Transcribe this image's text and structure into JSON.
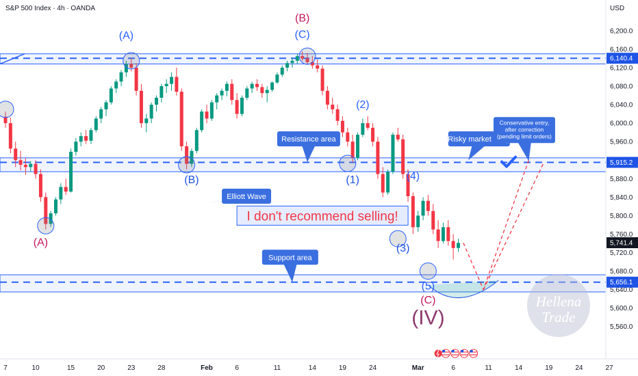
{
  "header": {
    "title": "S&P 500 Index · 4h · OANDA",
    "currency": "USD"
  },
  "chart_data": {
    "type": "candlestick",
    "title": "S&P 500 Index · 4h · OANDA",
    "currency": "USD",
    "y_range": [
      5530,
      6225
    ],
    "y_ticks": [
      "6,200.0",
      "6,160.0",
      "6,120.0",
      "6,080.0",
      "6,040.0",
      "6,000.0",
      "5,960.0",
      "5,920.0",
      "5,880.0",
      "5,840.0",
      "5,800.0",
      "5,760.0",
      "5,720.0",
      "5,680.0",
      "5,640.0",
      "5,600.0",
      "5,560.0"
    ],
    "x_ticks": [
      {
        "label": "7",
        "i": 0
      },
      {
        "label": "10",
        "i": 6
      },
      {
        "label": "15",
        "i": 13
      },
      {
        "label": "20",
        "i": 19
      },
      {
        "label": "23",
        "i": 25
      },
      {
        "label": "28",
        "i": 31
      },
      {
        "label": "Feb",
        "i": 40
      },
      {
        "label": "6",
        "i": 46
      },
      {
        "label": "11",
        "i": 54
      },
      {
        "label": "14",
        "i": 61
      },
      {
        "label": "19",
        "i": 67
      },
      {
        "label": "24",
        "i": 73
      },
      {
        "label": "Mar",
        "i": 82
      },
      {
        "label": "6",
        "i": 89
      },
      {
        "label": "11",
        "i": 96
      },
      {
        "label": "14",
        "i": 102
      },
      {
        "label": "19",
        "i": 108
      },
      {
        "label": "24",
        "i": 114
      },
      {
        "label": "27",
        "i": 120
      }
    ],
    "price_labels": [
      {
        "value": 6140.4,
        "text": "6,140.4",
        "color": "#1e53e5"
      },
      {
        "value": 5915.2,
        "text": "5,915.2",
        "color": "#1e53e5"
      },
      {
        "value": 5741.4,
        "text": "5,741.4",
        "color": "#131722"
      },
      {
        "value": 5656.1,
        "text": "5,656.1",
        "color": "#1e53e5"
      }
    ],
    "bands": [
      {
        "low": 6128,
        "high": 6150
      },
      {
        "low": 5895,
        "high": 5925
      },
      {
        "low": 5635,
        "high": 5672
      }
    ],
    "dashed_levels": [
      6140.4,
      5915.2,
      5656.1
    ],
    "candles": [
      [
        6014,
        6025,
        5990,
        6000
      ],
      [
        6000,
        6012,
        5935,
        5945
      ],
      [
        5945,
        5960,
        5905,
        5920
      ],
      [
        5920,
        5940,
        5898,
        5910
      ],
      [
        5910,
        5925,
        5888,
        5905
      ],
      [
        5905,
        5918,
        5895,
        5912
      ],
      [
        5912,
        5920,
        5880,
        5890
      ],
      [
        5890,
        5900,
        5830,
        5840
      ],
      [
        5840,
        5850,
        5770,
        5782
      ],
      [
        5782,
        5810,
        5775,
        5805
      ],
      [
        5805,
        5840,
        5800,
        5835
      ],
      [
        5835,
        5870,
        5825,
        5862
      ],
      [
        5862,
        5880,
        5845,
        5852
      ],
      [
        5852,
        5945,
        5850,
        5938
      ],
      [
        5938,
        5968,
        5930,
        5960
      ],
      [
        5960,
        5980,
        5950,
        5972
      ],
      [
        5972,
        5985,
        5955,
        5962
      ],
      [
        5962,
        5990,
        5955,
        5985
      ],
      [
        5985,
        6015,
        5980,
        6010
      ],
      [
        6010,
        6035,
        6000,
        6030
      ],
      [
        6030,
        6050,
        6015,
        6045
      ],
      [
        6045,
        6080,
        6040,
        6075
      ],
      [
        6075,
        6095,
        6065,
        6090
      ],
      [
        6090,
        6115,
        6080,
        6110
      ],
      [
        6110,
        6135,
        6100,
        6128
      ],
      [
        6128,
        6140,
        6112,
        6120
      ],
      [
        6120,
        6130,
        6060,
        6070
      ],
      [
        6070,
        6085,
        5990,
        6000
      ],
      [
        6000,
        6020,
        5980,
        6010
      ],
      [
        6010,
        6045,
        6000,
        6040
      ],
      [
        6040,
        6060,
        6025,
        6055
      ],
      [
        6055,
        6085,
        6045,
        6080
      ],
      [
        6080,
        6095,
        6065,
        6085
      ],
      [
        6085,
        6110,
        6070,
        6100
      ],
      [
        6100,
        6120,
        6060,
        6068
      ],
      [
        6068,
        6075,
        5940,
        5950
      ],
      [
        5950,
        5960,
        5900,
        5912
      ],
      [
        5912,
        5945,
        5905,
        5940
      ],
      [
        5940,
        5990,
        5935,
        5985
      ],
      [
        5985,
        6030,
        5980,
        6025
      ],
      [
        6025,
        6040,
        6000,
        6010
      ],
      [
        6010,
        6050,
        6005,
        6045
      ],
      [
        6045,
        6065,
        6030,
        6060
      ],
      [
        6060,
        6075,
        6050,
        6070
      ],
      [
        6070,
        6090,
        6058,
        6085
      ],
      [
        6085,
        6095,
        6040,
        6050
      ],
      [
        6050,
        6065,
        6010,
        6020
      ],
      [
        6020,
        6060,
        6015,
        6055
      ],
      [
        6055,
        6080,
        6050,
        6075
      ],
      [
        6075,
        6090,
        6065,
        6085
      ],
      [
        6085,
        6095,
        6070,
        6078
      ],
      [
        6078,
        6085,
        6055,
        6065
      ],
      [
        6065,
        6080,
        6045,
        6072
      ],
      [
        6072,
        6090,
        6068,
        6088
      ],
      [
        6088,
        6110,
        6085,
        6105
      ],
      [
        6105,
        6125,
        6100,
        6120
      ],
      [
        6120,
        6135,
        6112,
        6130
      ],
      [
        6130,
        6142,
        6120,
        6135
      ],
      [
        6135,
        6150,
        6128,
        6145
      ],
      [
        6145,
        6155,
        6135,
        6140
      ],
      [
        6140,
        6152,
        6128,
        6132
      ],
      [
        6132,
        6145,
        6118,
        6125
      ],
      [
        6125,
        6138,
        6110,
        6118
      ],
      [
        6118,
        6125,
        6060,
        6070
      ],
      [
        6070,
        6080,
        6030,
        6040
      ],
      [
        6040,
        6055,
        6020,
        6030
      ],
      [
        6030,
        6040,
        5995,
        6005
      ],
      [
        6005,
        6015,
        5970,
        5980
      ],
      [
        5980,
        5990,
        5950,
        5960
      ],
      [
        5960,
        5975,
        5915,
        5925
      ],
      [
        5925,
        5980,
        5920,
        5975
      ],
      [
        5975,
        6010,
        5970,
        6000
      ],
      [
        6000,
        6015,
        5985,
        5990
      ],
      [
        5990,
        6000,
        5950,
        5960
      ],
      [
        5960,
        5970,
        5880,
        5890
      ],
      [
        5890,
        5905,
        5840,
        5850
      ],
      [
        5850,
        5900,
        5845,
        5895
      ],
      [
        5895,
        5980,
        5890,
        5975
      ],
      [
        5975,
        5990,
        5960,
        5965
      ],
      [
        5965,
        5975,
        5880,
        5890
      ],
      [
        5890,
        5900,
        5830,
        5842
      ],
      [
        5842,
        5850,
        5760,
        5775
      ],
      [
        5775,
        5810,
        5765,
        5800
      ],
      [
        5800,
        5840,
        5790,
        5832
      ],
      [
        5832,
        5845,
        5800,
        5810
      ],
      [
        5810,
        5825,
        5760,
        5770
      ],
      [
        5770,
        5790,
        5730,
        5745
      ],
      [
        5745,
        5785,
        5740,
        5775
      ],
      [
        5775,
        5790,
        5735,
        5745
      ],
      [
        5745,
        5760,
        5705,
        5730
      ],
      [
        5730,
        5750,
        5722,
        5741
      ]
    ],
    "wave_labels": [
      {
        "text": "(A)",
        "i": 7,
        "price": 5735,
        "color": "#c2185b"
      },
      {
        "text": "(A)",
        "i": 24,
        "price": 6182,
        "color": "#2962ff"
      },
      {
        "text": "(B)",
        "i": 37,
        "price": 5870,
        "color": "#1e53e5"
      },
      {
        "text": "(B)",
        "i": 59,
        "price": 6220,
        "color": "#c2185b"
      },
      {
        "text": "(C)",
        "i": 59,
        "price": 6184,
        "color": "#2962ff"
      },
      {
        "text": "(1)",
        "i": 69,
        "price": 5870,
        "color": "#1e53e5"
      },
      {
        "text": "(2)",
        "i": 71,
        "price": 6033,
        "color": "#2962ff"
      },
      {
        "text": "(3)",
        "i": 79,
        "price": 5722,
        "color": "#1e53e5"
      },
      {
        "text": "(4)",
        "i": 81,
        "price": 5878,
        "color": "#2962ff"
      },
      {
        "text": "(5)",
        "i": 84,
        "price": 5640,
        "color": "#2962ff"
      },
      {
        "text": "(C)",
        "i": 84,
        "price": 5610,
        "color": "#c2185b"
      },
      {
        "text": "(IV)",
        "i": 84,
        "price": 5565,
        "color": "#8e3a6e"
      }
    ],
    "circles": [
      {
        "i": 0,
        "price": 6030
      },
      {
        "i": 8,
        "price": 5778
      },
      {
        "i": 25,
        "price": 6135
      },
      {
        "i": 36,
        "price": 5910
      },
      {
        "i": 60,
        "price": 6145
      },
      {
        "i": 68,
        "price": 5913
      },
      {
        "i": 78,
        "price": 5750
      },
      {
        "i": 84,
        "price": 5680
      }
    ],
    "callouts": [
      {
        "text": "Resistance area",
        "i": 54,
        "price": 5966,
        "w": 92,
        "pointer_i": 60,
        "pointer_price": 5916
      },
      {
        "text": "Elliott Wave",
        "i": 43,
        "price": 5842,
        "w": 72,
        "pointer_i": 40,
        "pointer_price": 5830
      },
      {
        "text": "Support area",
        "i": 51,
        "price": 5710,
        "w": 82,
        "pointer_i": 57,
        "pointer_price": 5656
      },
      {
        "text": "Risky market entry",
        "i": 88,
        "price": 5966,
        "w": 90,
        "pointer_i": 92,
        "pointer_price": 5920
      },
      {
        "text": "Conservative entry, after correction (pending limit orders)",
        "lines": [
          "Conservative entry,",
          "after correction",
          "(pending limit orders)"
        ],
        "i": 97,
        "price": 5985,
        "w": 90,
        "pointer_i": 104,
        "pointer_price": 5918
      }
    ],
    "banner": {
      "text": "I don't recommend selling!"
    },
    "projection_paths": [
      {
        "points": [
          [
            91,
            5741
          ],
          [
            95,
            5640
          ],
          [
            104,
            5920
          ]
        ]
      },
      {
        "points": [
          [
            95,
            5640
          ],
          [
            107,
            5915
          ]
        ]
      }
    ],
    "watermark": {
      "line1": "Hellena",
      "line2": "Trade"
    }
  }
}
